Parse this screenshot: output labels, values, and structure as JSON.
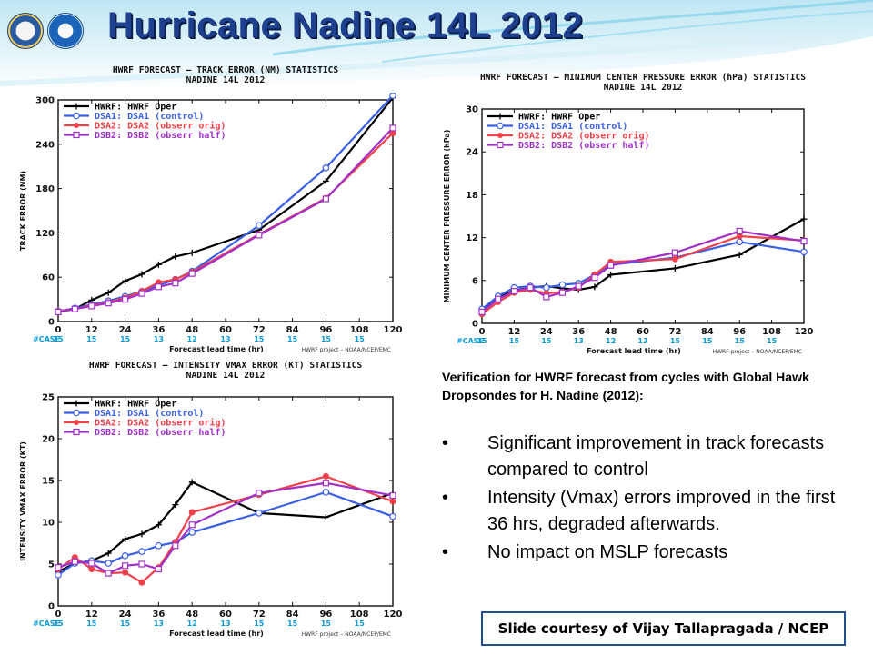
{
  "page_title": "Hurricane Nadine 14L  2012",
  "logos": [
    {
      "name": "doc-seal"
    },
    {
      "name": "noaa-logo"
    }
  ],
  "caption": {
    "heading": "Verification for HWRF forecast from cycles with Global Hawk Dropsondes for H. Nadine (2012):",
    "bullets": [
      "Significant improvement in track forecasts compared to control",
      "Intensity (Vmax) errors improved in the first 36 hrs, degraded afterwards.",
      "No impact on MSLP forecasts"
    ],
    "bullet_char": "•"
  },
  "credit": "Slide courtesy of Vijay Tallapragada / NCEP",
  "colors": {
    "oper": "#000000",
    "dsa1": "#3a5fe6",
    "dsa2": "#f0404a",
    "dsb2": "#a030c8",
    "case": "#0a9ad8",
    "title": "#1f3f8f",
    "credit_border": "#1f4f8f"
  },
  "chart_data": [
    {
      "id": "track",
      "type": "line",
      "title": "HWRF FORECAST – TRACK ERROR (NM) STATISTICS",
      "subtitle": "NADINE 14L 2012",
      "ylabel": "TRACK ERROR (NM)",
      "xlabel": "Forecast lead time (hr)",
      "footnote": "HWRF project – NOAA/NCEP/EMC",
      "ylim": [
        0,
        300
      ],
      "yticks": [
        0,
        60,
        120,
        180,
        240,
        300
      ],
      "xlim": [
        0,
        120
      ],
      "xticks": [
        0,
        12,
        24,
        36,
        48,
        60,
        72,
        84,
        96,
        108,
        120
      ],
      "case_label": "#CASE",
      "case_counts": [
        "15",
        "15",
        "15",
        "13",
        "12",
        "13",
        "15",
        "15",
        "15",
        "15"
      ],
      "legend_position": "top-left",
      "series": [
        {
          "key": "oper",
          "name": "HWRF: HWRF Oper",
          "marker": "plus",
          "x": [
            0,
            6,
            12,
            18,
            24,
            30,
            36,
            42,
            48,
            72,
            96,
            120
          ],
          "y": [
            13,
            17,
            29,
            39,
            55,
            64,
            77,
            88,
            93,
            124,
            190,
            303
          ]
        },
        {
          "key": "dsa1",
          "name": "DSA1: DSA1 (control)",
          "marker": "circle",
          "x": [
            0,
            6,
            12,
            18,
            24,
            30,
            36,
            42,
            48,
            72,
            96,
            120
          ],
          "y": [
            14,
            18,
            23,
            28,
            34,
            41,
            49,
            57,
            68,
            130,
            208,
            306
          ]
        },
        {
          "key": "dsa2",
          "name": "DSA2: DSA2 (obserr orig)",
          "marker": "dot",
          "x": [
            0,
            6,
            12,
            18,
            24,
            30,
            36,
            42,
            48,
            72,
            96,
            120
          ],
          "y": [
            14,
            17,
            22,
            26,
            32,
            41,
            53,
            57,
            67,
            118,
            167,
            255
          ]
        },
        {
          "key": "dsb2",
          "name": "DSB2: DSB2 (obserr half)",
          "marker": "square",
          "x": [
            0,
            6,
            12,
            18,
            24,
            30,
            36,
            42,
            48,
            72,
            96,
            120
          ],
          "y": [
            13,
            17,
            21,
            25,
            30,
            38,
            47,
            52,
            65,
            117,
            166,
            262
          ]
        }
      ]
    },
    {
      "id": "pressure",
      "type": "line",
      "title": "HWRF FORECAST – MINIMUM CENTER PRESSURE ERROR (hPa) STATISTICS",
      "subtitle": "NADINE 14L 2012",
      "ylabel": "MINIMUM CENTER PRESSURE ERROR (hPa)",
      "xlabel": "Forecast lead time (hr)",
      "footnote": "HWRF project – NOAA/NCEP/EMC",
      "ylim": [
        0,
        30
      ],
      "yticks": [
        0,
        6,
        12,
        18,
        24,
        30
      ],
      "xlim": [
        0,
        120
      ],
      "xticks": [
        0,
        12,
        24,
        36,
        48,
        60,
        72,
        84,
        96,
        108,
        120
      ],
      "case_label": "#CASE",
      "case_counts": [
        "15",
        "15",
        "15",
        "13",
        "12",
        "13",
        "15",
        "15",
        "15",
        "15"
      ],
      "legend_position": "top-left",
      "series": [
        {
          "key": "oper",
          "name": "HWRF: HWRF Oper",
          "marker": "plus",
          "x": [
            0,
            6,
            12,
            18,
            24,
            30,
            36,
            42,
            48,
            72,
            96,
            120
          ],
          "y": [
            1.8,
            3.6,
            4.6,
            5.0,
            5.2,
            4.9,
            4.7,
            5.1,
            6.8,
            7.7,
            9.6,
            14.6
          ]
        },
        {
          "key": "dsa1",
          "name": "DSA1: DSA1 (control)",
          "marker": "circle",
          "x": [
            0,
            6,
            12,
            18,
            24,
            30,
            36,
            42,
            48,
            72,
            96,
            120
          ],
          "y": [
            2.0,
            3.8,
            5.0,
            5.2,
            5.0,
            5.4,
            5.6,
            6.8,
            8.2,
            9.2,
            11.4,
            10.0
          ]
        },
        {
          "key": "dsa2",
          "name": "DSA2: DSA2 (obserr orig)",
          "marker": "dot",
          "x": [
            0,
            6,
            12,
            18,
            24,
            30,
            36,
            42,
            48,
            72,
            96,
            120
          ],
          "y": [
            1.3,
            3.0,
            4.3,
            4.7,
            4.2,
            4.4,
            5.0,
            6.8,
            8.6,
            9.0,
            12.2,
            11.6
          ]
        },
        {
          "key": "dsb2",
          "name": "DSB2: DSB2 (obserr half)",
          "marker": "square",
          "x": [
            0,
            6,
            12,
            18,
            24,
            30,
            36,
            42,
            48,
            72,
            96,
            120
          ],
          "y": [
            1.6,
            3.4,
            4.5,
            5.0,
            3.7,
            4.3,
            5.2,
            6.4,
            8.1,
            9.9,
            12.9,
            11.5
          ]
        }
      ]
    },
    {
      "id": "intensity",
      "type": "line",
      "title": "HWRF FORECAST – INTENSITY VMAX ERROR (KT) STATISTICS",
      "subtitle": "NADINE 14L 2012",
      "ylabel": "INTENSITY VMAX ERROR (KT)",
      "xlabel": "Forecast lead time (hr)",
      "footnote": "HWRF project – NOAA/NCEP/EMC",
      "ylim": [
        0,
        25
      ],
      "yticks": [
        0,
        5,
        10,
        15,
        20,
        25
      ],
      "xlim": [
        0,
        120
      ],
      "xticks": [
        0,
        12,
        24,
        36,
        48,
        60,
        72,
        84,
        96,
        108,
        120
      ],
      "case_label": "#CASE",
      "case_counts": [
        "15",
        "15",
        "15",
        "13",
        "12",
        "13",
        "15",
        "15",
        "15",
        "15"
      ],
      "legend_position": "top-left",
      "series": [
        {
          "key": "oper",
          "name": "HWRF: HWRF Oper",
          "marker": "plus",
          "x": [
            0,
            6,
            12,
            18,
            24,
            30,
            36,
            42,
            48,
            72,
            96,
            120
          ],
          "y": [
            4.1,
            5.1,
            5.4,
            6.3,
            8.0,
            8.6,
            9.7,
            12.1,
            14.8,
            11.1,
            10.6,
            13.5
          ]
        },
        {
          "key": "dsa1",
          "name": "DSA1: DSA1 (control)",
          "marker": "circle",
          "x": [
            0,
            6,
            12,
            18,
            24,
            30,
            36,
            42,
            48,
            72,
            96,
            120
          ],
          "y": [
            3.7,
            5.1,
            5.4,
            5.1,
            6.0,
            6.5,
            7.2,
            7.6,
            8.8,
            11.1,
            13.6,
            10.7
          ]
        },
        {
          "key": "dsa2",
          "name": "DSA2: DSA2 (obserr orig)",
          "marker": "dot",
          "x": [
            0,
            6,
            12,
            18,
            24,
            30,
            36,
            42,
            48,
            72,
            96,
            120
          ],
          "y": [
            4.4,
            5.8,
            4.4,
            3.9,
            4.0,
            2.8,
            4.6,
            7.6,
            11.2,
            13.3,
            15.5,
            12.5
          ]
        },
        {
          "key": "dsb2",
          "name": "DSB2: DSB2 (obserr half)",
          "marker": "square",
          "x": [
            0,
            6,
            12,
            18,
            24,
            30,
            36,
            42,
            48,
            72,
            96,
            120
          ],
          "y": [
            4.6,
            5.3,
            5.1,
            3.9,
            4.8,
            5.0,
            4.4,
            7.2,
            9.7,
            13.5,
            14.7,
            13.2
          ]
        }
      ]
    }
  ]
}
